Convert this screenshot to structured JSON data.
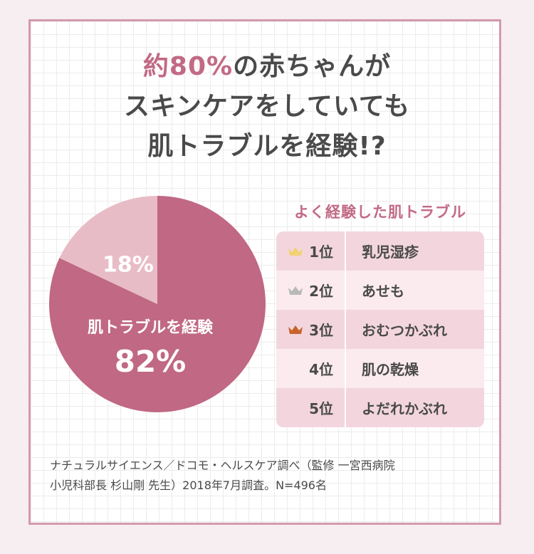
{
  "headline": {
    "line1_highlight": "約80%",
    "line1_rest": "の赤ちゃんが",
    "line2": "スキンケアをしていても",
    "line3": "肌トラブルを経験!?"
  },
  "chart_data": {
    "type": "pie",
    "slices": [
      {
        "label": "肌トラブルを経験",
        "value": 82,
        "value_label": "82%",
        "color": "#c06884"
      },
      {
        "label": "",
        "value": 18,
        "value_label": "18%",
        "color": "#e8bcc6"
      }
    ],
    "start": "12 o'clock, clockwise"
  },
  "ranking": {
    "title": "よく経験した肌トラブル",
    "rows": [
      {
        "rank": "1位",
        "trouble": "乳児湿疹",
        "crown": "gold-crown-icon",
        "crown_color": "#f2d173"
      },
      {
        "rank": "2位",
        "trouble": "あせも",
        "crown": "silver-crown-icon",
        "crown_color": "#b9b9b9"
      },
      {
        "rank": "3位",
        "trouble": "おむつかぶれ",
        "crown": "bronze-crown-icon",
        "crown_color": "#c8632c"
      },
      {
        "rank": "4位",
        "trouble": "肌の乾燥",
        "crown": "",
        "crown_color": ""
      },
      {
        "rank": "5位",
        "trouble": "よだれかぶれ",
        "crown": "",
        "crown_color": ""
      }
    ]
  },
  "source": {
    "line1": "ナチュラルサイエンス／ドコモ・ヘルスケア調べ（監修 一宮西病院",
    "line2": "小児科部長 杉山剛 先生）2018年7月調査。N=496名"
  },
  "colors": {
    "accent": "#c26a85",
    "border": "#d59aab",
    "text": "#4a4a4a"
  }
}
